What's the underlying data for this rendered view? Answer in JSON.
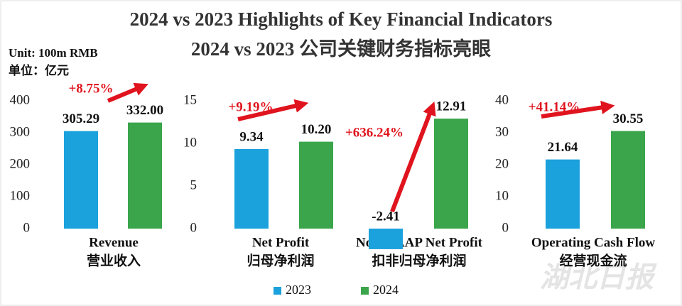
{
  "header": {
    "title_en": "2024 vs 2023 Highlights of Key Financial Indicators",
    "title_zh": "2024 vs 2023 公司关键财务指标亮眼",
    "unit_en": "Unit: 100m RMB",
    "unit_zh": "单位：亿元",
    "watermark": "湖北日报"
  },
  "chart_data": [
    {
      "type": "bar",
      "categories": [
        "Revenue"
      ],
      "categories_zh": [
        "营业收入"
      ],
      "annotations": [
        "+8.75%"
      ],
      "ylim": [
        0,
        400
      ],
      "yticks": [
        0,
        100,
        200,
        300,
        400
      ],
      "series": [
        {
          "name": "2023",
          "color": "#1ba1dc",
          "values": [
            305.29
          ],
          "value_labels": [
            "305.29"
          ]
        },
        {
          "name": "2024",
          "color": "#3aa54a",
          "values": [
            332.0
          ],
          "value_labels": [
            "332.00"
          ]
        }
      ]
    },
    {
      "type": "bar",
      "categories": [
        "Net Profit",
        "Non-GAAP Net Profit"
      ],
      "categories_zh": [
        "归母净利润",
        "扣非归母净利润"
      ],
      "annotations": [
        "+9.19%",
        "+636.24%"
      ],
      "ylim": [
        0,
        15
      ],
      "yticks": [
        0,
        5,
        10,
        15
      ],
      "series": [
        {
          "name": "2023",
          "color": "#1ba1dc",
          "values": [
            9.34,
            -2.41
          ],
          "value_labels": [
            "9.34",
            "-2.41"
          ]
        },
        {
          "name": "2024",
          "color": "#3aa54a",
          "values": [
            10.2,
            12.91
          ],
          "value_labels": [
            "10.20",
            "12.91"
          ]
        }
      ]
    },
    {
      "type": "bar",
      "categories": [
        "Operating Cash Flow"
      ],
      "categories_zh": [
        "经营现金流"
      ],
      "annotations": [
        "+41.14%"
      ],
      "ylim": [
        0,
        40
      ],
      "yticks": [
        0,
        10,
        20,
        30,
        40
      ],
      "series": [
        {
          "name": "2023",
          "color": "#1ba1dc",
          "values": [
            21.64
          ],
          "value_labels": [
            "21.64"
          ]
        },
        {
          "name": "2024",
          "color": "#3aa54a",
          "values": [
            30.55
          ],
          "value_labels": [
            "30.55"
          ]
        }
      ]
    }
  ]
}
